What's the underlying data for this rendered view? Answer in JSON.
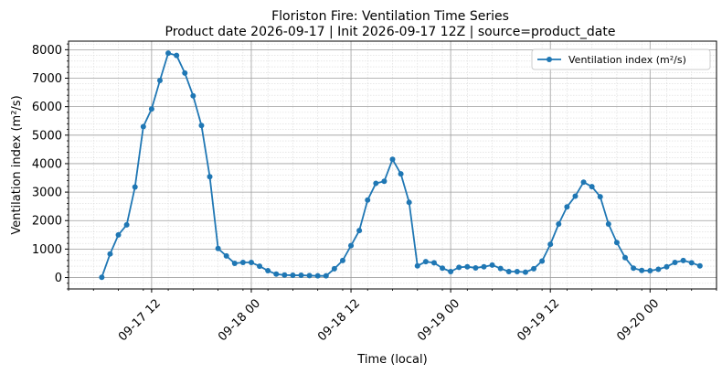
{
  "chart_data": {
    "type": "line",
    "title_line1": "Floriston Fire: Ventilation Time Series",
    "title_line2": "Product date 2026-09-17 | Init 2026-09-17 12Z | source=product_date",
    "xlabel": "Time (local)",
    "ylabel": "Ventilation index (m²/s)",
    "x_start": "2026-09-17 06:00",
    "x_step_hours": 1,
    "xlim": [
      "2026-09-17 02:00",
      "2026-09-20 08:00"
    ],
    "ylim": [
      -400,
      8300
    ],
    "yticks": [
      0,
      1000,
      2000,
      3000,
      4000,
      5000,
      6000,
      7000,
      8000
    ],
    "xtick_labels": [
      {
        "t": "2026-09-17 12:00",
        "label": "09-17 12"
      },
      {
        "t": "2026-09-18 00:00",
        "label": "09-18 00"
      },
      {
        "t": "2026-09-18 12:00",
        "label": "09-18 12"
      },
      {
        "t": "2026-09-19 00:00",
        "label": "09-19 00"
      },
      {
        "t": "2026-09-19 12:00",
        "label": "09-19 12"
      },
      {
        "t": "2026-09-20 00:00",
        "label": "09-20 00"
      }
    ],
    "grid": true,
    "legend_position": "top-right",
    "series": [
      {
        "name": "Ventilation index (m²/s)",
        "color": "#1f77b4",
        "values": [
          10,
          830,
          1500,
          1850,
          3180,
          5300,
          5920,
          6920,
          7880,
          7800,
          7180,
          6380,
          5340,
          3540,
          1020,
          760,
          500,
          530,
          530,
          400,
          240,
          120,
          90,
          80,
          80,
          70,
          60,
          60,
          310,
          600,
          1120,
          1650,
          2720,
          3310,
          3380,
          4150,
          3640,
          2640,
          410,
          560,
          520,
          330,
          210,
          360,
          380,
          340,
          380,
          440,
          320,
          210,
          210,
          190,
          310,
          580,
          1170,
          1880,
          2480,
          2860,
          3350,
          3190,
          2840,
          1880,
          1230,
          700,
          330,
          250,
          240,
          290,
          380,
          530,
          600,
          520,
          410
        ]
      }
    ]
  }
}
